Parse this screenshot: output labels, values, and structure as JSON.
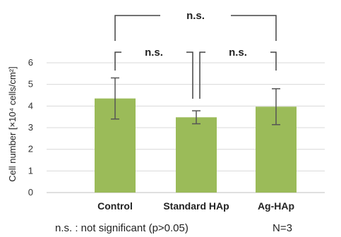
{
  "chart_data": {
    "type": "bar",
    "categories": [
      "Control",
      "Standard HAp",
      "Ag-HAp"
    ],
    "values": [
      4.35,
      3.48,
      3.97
    ],
    "error": [
      0.95,
      0.3,
      0.83
    ],
    "ylabel": "Cell number [×10⁴ cells/cm²]",
    "ylim": [
      0,
      6
    ],
    "yticks": [
      "0",
      "1",
      "2",
      "3",
      "4",
      "5",
      "6"
    ],
    "grid": true,
    "bar_color": "#9bbb59",
    "comparisons": [
      {
        "from": 0,
        "to": 2,
        "label": "n.s."
      },
      {
        "from": 0,
        "to": 1,
        "label": "n.s."
      },
      {
        "from": 1,
        "to": 2,
        "label": "n.s."
      }
    ],
    "footnote": "n.s. : not significant (p>0.05)",
    "n_label": "N=3"
  }
}
